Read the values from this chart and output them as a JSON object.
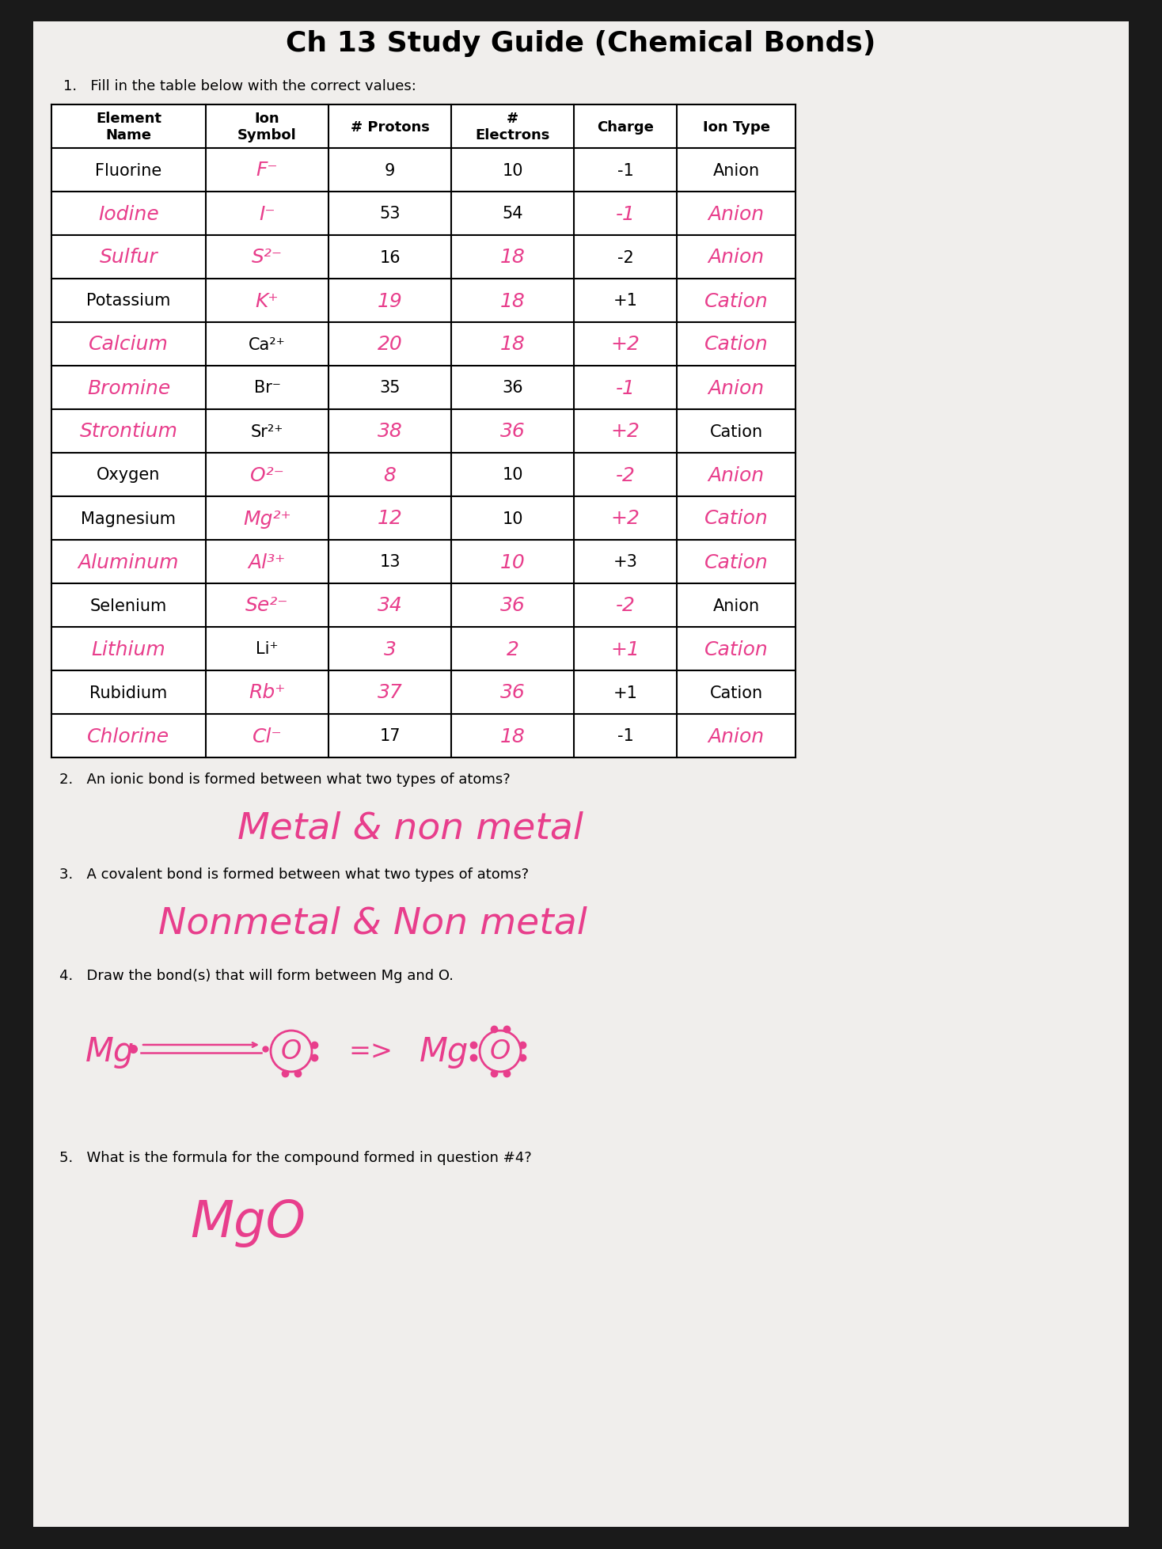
{
  "title": "Ch 13 Study Guide (Chemical Bonds)",
  "question1": "1.   Fill in the table below with the correct values:",
  "question2": "2.   An ionic bond is formed between what two types of atoms?",
  "answer2": "Metal & non metal",
  "question3": "3.   A covalent bond is formed between what two types of atoms?",
  "answer3": "Nonmetal & Non metal",
  "question4": "4.   Draw the bond(s) that will form between Mg and O.",
  "question5": "5.   What is the formula for the compound formed in question #4?",
  "answer5": "MgO",
  "col_headers": [
    "Element\nName",
    "Ion\nSymbol",
    "# Protons",
    "#\nElectrons",
    "Charge",
    "Ion Type"
  ],
  "rows": [
    {
      "name": "Fluorine",
      "name_color": "black",
      "symbol": "F⁻",
      "sym_color": "#e83e8c",
      "protons": "9",
      "p_color": "black",
      "electrons": "10",
      "e_color": "black",
      "charge": "-1",
      "c_color": "black",
      "ion_type": "Anion",
      "type_color": "black",
      "name_hw": false,
      "sym_hw": true,
      "p_hw": false,
      "e_hw": false,
      "c_hw": false,
      "t_hw": false
    },
    {
      "name": "Iodine",
      "name_color": "#e83e8c",
      "symbol": "I⁻",
      "sym_color": "#e83e8c",
      "protons": "53",
      "p_color": "black",
      "electrons": "54",
      "e_color": "black",
      "charge": "-1",
      "c_color": "#e83e8c",
      "ion_type": "Anion",
      "type_color": "#e83e8c",
      "name_hw": true,
      "sym_hw": true,
      "p_hw": false,
      "e_hw": false,
      "c_hw": true,
      "t_hw": true
    },
    {
      "name": "Sulfur",
      "name_color": "#e83e8c",
      "symbol": "S²⁻",
      "sym_color": "#e83e8c",
      "protons": "16",
      "p_color": "black",
      "electrons": "18",
      "e_color": "#e83e8c",
      "charge": "-2",
      "c_color": "black",
      "ion_type": "Anion",
      "type_color": "#e83e8c",
      "name_hw": true,
      "sym_hw": true,
      "p_hw": false,
      "e_hw": true,
      "c_hw": false,
      "t_hw": true
    },
    {
      "name": "Potassium",
      "name_color": "black",
      "symbol": "K⁺",
      "sym_color": "#e83e8c",
      "protons": "19",
      "p_color": "#e83e8c",
      "electrons": "18",
      "e_color": "#e83e8c",
      "charge": "+1",
      "c_color": "black",
      "ion_type": "Cation",
      "type_color": "#e83e8c",
      "name_hw": false,
      "sym_hw": true,
      "p_hw": true,
      "e_hw": true,
      "c_hw": false,
      "t_hw": true
    },
    {
      "name": "Calcium",
      "name_color": "#e83e8c",
      "symbol": "Ca²⁺",
      "sym_color": "black",
      "protons": "20",
      "p_color": "#e83e8c",
      "electrons": "18",
      "e_color": "#e83e8c",
      "charge": "+2",
      "c_color": "#e83e8c",
      "ion_type": "Cation",
      "type_color": "#e83e8c",
      "name_hw": true,
      "sym_hw": false,
      "p_hw": true,
      "e_hw": true,
      "c_hw": true,
      "t_hw": true
    },
    {
      "name": "Bromine",
      "name_color": "#e83e8c",
      "symbol": "Br⁻",
      "sym_color": "black",
      "protons": "35",
      "p_color": "black",
      "electrons": "36",
      "e_color": "black",
      "charge": "-1",
      "c_color": "#e83e8c",
      "ion_type": "Anion",
      "type_color": "#e83e8c",
      "name_hw": true,
      "sym_hw": false,
      "p_hw": false,
      "e_hw": false,
      "c_hw": true,
      "t_hw": true
    },
    {
      "name": "Strontium",
      "name_color": "#e83e8c",
      "symbol": "Sr²⁺",
      "sym_color": "black",
      "protons": "38",
      "p_color": "#e83e8c",
      "electrons": "36",
      "e_color": "#e83e8c",
      "charge": "+2",
      "c_color": "#e83e8c",
      "ion_type": "Cation",
      "type_color": "black",
      "name_hw": true,
      "sym_hw": false,
      "p_hw": true,
      "e_hw": true,
      "c_hw": true,
      "t_hw": false
    },
    {
      "name": "Oxygen",
      "name_color": "black",
      "symbol": "O²⁻",
      "sym_color": "#e83e8c",
      "protons": "8",
      "p_color": "#e83e8c",
      "electrons": "10",
      "e_color": "black",
      "charge": "-2",
      "c_color": "#e83e8c",
      "ion_type": "Anion",
      "type_color": "#e83e8c",
      "name_hw": false,
      "sym_hw": true,
      "p_hw": true,
      "e_hw": false,
      "c_hw": true,
      "t_hw": true
    },
    {
      "name": "Magnesium",
      "name_color": "black",
      "symbol": "Mg²⁺",
      "sym_color": "#e83e8c",
      "protons": "12",
      "p_color": "#e83e8c",
      "electrons": "10",
      "e_color": "black",
      "charge": "+2",
      "c_color": "#e83e8c",
      "ion_type": "Cation",
      "type_color": "#e83e8c",
      "name_hw": false,
      "sym_hw": true,
      "p_hw": true,
      "e_hw": false,
      "c_hw": true,
      "t_hw": true
    },
    {
      "name": "Aluminum",
      "name_color": "#e83e8c",
      "symbol": "Al³⁺",
      "sym_color": "#e83e8c",
      "protons": "13",
      "p_color": "black",
      "electrons": "10",
      "e_color": "#e83e8c",
      "charge": "+3",
      "c_color": "black",
      "ion_type": "Cation",
      "type_color": "#e83e8c",
      "name_hw": true,
      "sym_hw": true,
      "p_hw": false,
      "e_hw": true,
      "c_hw": false,
      "t_hw": true
    },
    {
      "name": "Selenium",
      "name_color": "black",
      "symbol": "Se²⁻",
      "sym_color": "#e83e8c",
      "protons": "34",
      "p_color": "#e83e8c",
      "electrons": "36",
      "e_color": "#e83e8c",
      "charge": "-2",
      "c_color": "#e83e8c",
      "ion_type": "Anion",
      "type_color": "black",
      "name_hw": false,
      "sym_hw": true,
      "p_hw": true,
      "e_hw": true,
      "c_hw": true,
      "t_hw": false
    },
    {
      "name": "Lithium",
      "name_color": "#e83e8c",
      "symbol": "Li⁺",
      "sym_color": "black",
      "protons": "3",
      "p_color": "#e83e8c",
      "electrons": "2",
      "e_color": "#e83e8c",
      "charge": "+1",
      "c_color": "#e83e8c",
      "ion_type": "Cation",
      "type_color": "#e83e8c",
      "name_hw": true,
      "sym_hw": false,
      "p_hw": true,
      "e_hw": true,
      "c_hw": true,
      "t_hw": true
    },
    {
      "name": "Rubidium",
      "name_color": "black",
      "symbol": "Rb⁺",
      "sym_color": "#e83e8c",
      "protons": "37",
      "p_color": "#e83e8c",
      "electrons": "36",
      "e_color": "#e83e8c",
      "charge": "+1",
      "c_color": "black",
      "ion_type": "Cation",
      "type_color": "black",
      "name_hw": false,
      "sym_hw": true,
      "p_hw": true,
      "e_hw": true,
      "c_hw": false,
      "t_hw": false
    },
    {
      "name": "Chlorine",
      "name_color": "#e83e8c",
      "symbol": "Cl⁻",
      "sym_color": "#e83e8c",
      "protons": "17",
      "p_color": "black",
      "electrons": "18",
      "e_color": "#e83e8c",
      "charge": "-1",
      "c_color": "black",
      "ion_type": "Anion",
      "type_color": "#e83e8c",
      "name_hw": true,
      "sym_hw": true,
      "p_hw": false,
      "e_hw": true,
      "c_hw": false,
      "t_hw": true
    }
  ],
  "pink": "#e83e8c"
}
